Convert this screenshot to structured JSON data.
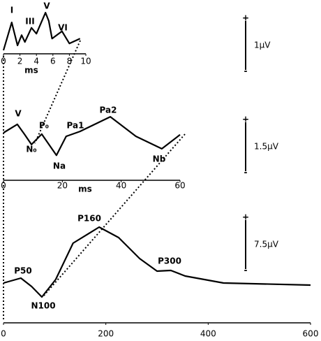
{
  "chart_data": [
    {
      "type": "line",
      "color": "#000000",
      "x_label": "ms",
      "x": [
        0,
        1,
        1.7,
        2.2,
        2.6,
        3.4,
        4.0,
        5.1,
        5.5,
        5.9,
        7.1,
        8.0,
        9.3
      ],
      "values": [
        0,
        0.57,
        0.1,
        0.31,
        0.17,
        0.46,
        0.34,
        0.77,
        0.6,
        0.24,
        0.39,
        0.14,
        0.24
      ],
      "xlim": [
        0,
        10
      ],
      "xticks": [
        0,
        2,
        4,
        6,
        8,
        10
      ],
      "ylim": [
        -0.1,
        0.9
      ],
      "annotations": [
        "I",
        "III",
        "V",
        "VI"
      ],
      "scale_bar": {
        "label": "1μV",
        "top": "+",
        "bottom": "-"
      }
    },
    {
      "type": "line",
      "color": "#000000",
      "x_label": "ms",
      "x": [
        0,
        4.7,
        7.1,
        9.5,
        13,
        18,
        21.3,
        26,
        36.3,
        45,
        53.8,
        60
      ],
      "values": [
        0,
        0.26,
        -0.04,
        -0.36,
        -0.04,
        -0.69,
        -0.11,
        0.04,
        0.49,
        -0.11,
        -0.49,
        -0.06
      ],
      "xlim": [
        0,
        60
      ],
      "xticks": [
        0,
        20,
        40,
        60
      ],
      "ylim": [
        -1.5,
        1.5
      ],
      "annotations": [
        "V",
        "P₀",
        "Pa1",
        "Pa2",
        "N₀",
        "Na",
        "Nb"
      ],
      "scale_bar": {
        "label": "1.5μV",
        "top": "+",
        "bottom": "-"
      }
    },
    {
      "type": "line",
      "color": "#000000",
      "x": [
        0,
        34,
        55,
        75,
        102,
        136,
        187,
        225,
        266,
        300,
        327,
        355,
        430,
        600
      ],
      "values": [
        -0.21,
        0.54,
        -0.75,
        -2.36,
        0.32,
        5.89,
        8.36,
        6.75,
        3.54,
        1.61,
        1.71,
        0.86,
        -0.21,
        -0.54
      ],
      "xlim": [
        0,
        600
      ],
      "xticks": [
        0,
        200,
        400,
        600
      ],
      "ylim": [
        -7.5,
        7.5
      ],
      "annotations": [
        "P50",
        "N100",
        "P160",
        "P300"
      ],
      "scale_bar": {
        "label": "7.5μV",
        "top": "+",
        "bottom": "-"
      }
    }
  ]
}
